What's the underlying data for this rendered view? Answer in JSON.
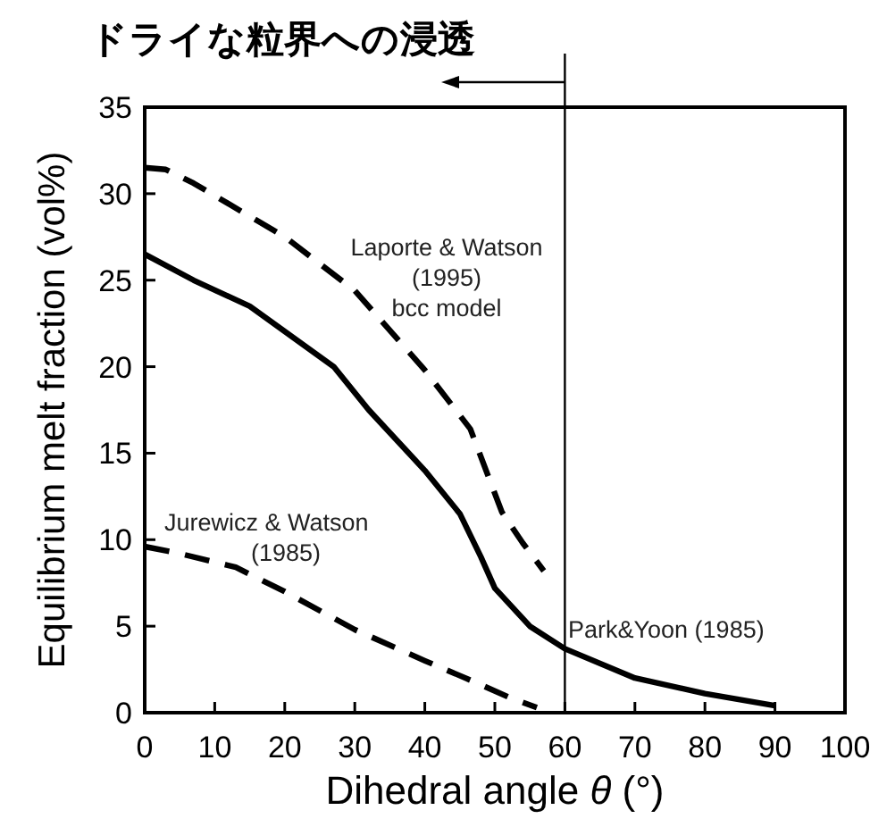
{
  "chart_data": {
    "type": "line",
    "xlabel": "Dihedral angle *θ* (°)",
    "ylabel": "Equilibrium melt fraction (vol%)",
    "xlim": [
      0,
      100
    ],
    "ylim": [
      0,
      35
    ],
    "xticks": [
      0,
      10,
      20,
      30,
      40,
      50,
      60,
      70,
      80,
      90,
      100
    ],
    "yticks": [
      0,
      5,
      10,
      15,
      20,
      25,
      30,
      35
    ],
    "legend": false,
    "grid": false,
    "marker": "none",
    "ref_lines": [
      {
        "axis": "x",
        "value": 60,
        "label": "ドライな粒界への浸透",
        "color": "#000000"
      }
    ],
    "series": [
      {
        "name": "Laporte & Watson (1995) bcc model",
        "color": "#000000",
        "line_style": "dashed",
        "x": [
          0,
          3,
          7,
          20,
          30,
          40,
          46.5,
          51,
          54,
          57
        ],
        "values": [
          31.5,
          31.4,
          30.6,
          27.5,
          24.4,
          19.8,
          16.4,
          11.6,
          9.8,
          8.2
        ]
      },
      {
        "name": "Jurewicz & Watson (1985)",
        "color": "#000000",
        "line_style": "dashed",
        "x": [
          0,
          5,
          13,
          20,
          30,
          40,
          47,
          52,
          56
        ],
        "values": [
          9.6,
          9.2,
          8.4,
          7.0,
          4.8,
          3.0,
          1.8,
          0.9,
          0.3
        ]
      },
      {
        "name": "Park&Yoon (1985)",
        "color": "#000000",
        "line_style": "solid",
        "x": [
          0,
          7,
          15,
          27,
          32,
          40,
          45,
          48,
          50,
          55,
          60,
          70,
          80,
          90
        ],
        "values": [
          26.5,
          25,
          23.5,
          20,
          17.5,
          14,
          11.5,
          9,
          7.2,
          5,
          3.7,
          2,
          1.1,
          0.4
        ]
      }
    ]
  }
}
